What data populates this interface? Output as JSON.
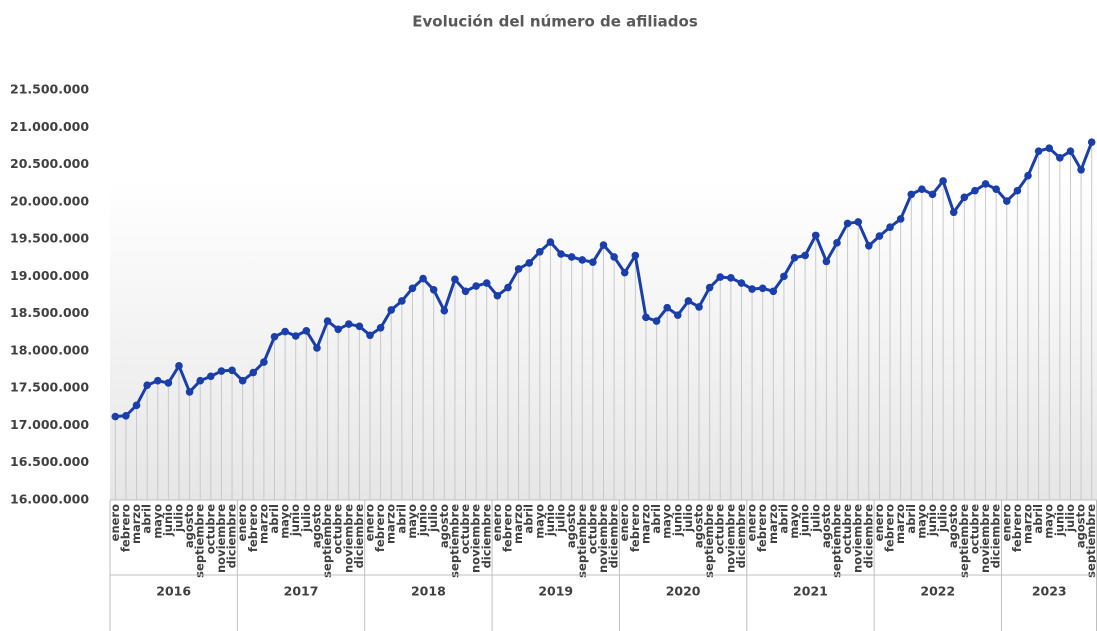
{
  "chart_data": {
    "type": "line",
    "title": "Evolución del número de afiliados",
    "color": "#1a3faa",
    "years": [
      "2016",
      "2017",
      "2018",
      "2019",
      "2020",
      "2021",
      "2022",
      "2023"
    ],
    "categories": [
      "enero",
      "febrero",
      "marzo",
      "abril",
      "mayo",
      "junio",
      "julio",
      "agosto",
      "septiembre",
      "octubre",
      "noviembre",
      "diciembre",
      "enero",
      "febrero",
      "marzo",
      "abril",
      "mayo",
      "junio",
      "julio",
      "agosto",
      "septiembre",
      "octubre",
      "noviembre",
      "diciembre",
      "enero",
      "febrero",
      "marzo",
      "abril",
      "mayo",
      "junio",
      "julio",
      "agosto",
      "septiembre",
      "octubre",
      "noviembre",
      "diciembre",
      "enero",
      "febrero",
      "marzo",
      "abril",
      "mayo",
      "junio",
      "julio",
      "agosto",
      "septiembre",
      "octubre",
      "noviembre",
      "diciembre",
      "enero",
      "febrero",
      "marzo",
      "abril",
      "mayo",
      "junio",
      "julio",
      "agosto",
      "septiembre",
      "octubre",
      "noviembre",
      "diciembre",
      "enero",
      "febrero",
      "marzo",
      "abril",
      "mayo",
      "junio",
      "julio",
      "agosto",
      "septiembre",
      "octubre",
      "noviembre",
      "diciembre",
      "enero",
      "febrero",
      "marzo",
      "abril",
      "mayo",
      "junio",
      "julio",
      "agosto",
      "septiembre",
      "octubre",
      "noviembre",
      "diciembre",
      "enero",
      "febrero",
      "marzo",
      "abril",
      "mayo",
      "junio",
      "julio",
      "agosto",
      "septiembre"
    ],
    "values": [
      17120000,
      17130000,
      17270000,
      17540000,
      17600000,
      17570000,
      17800000,
      17450000,
      17600000,
      17660000,
      17730000,
      17740000,
      17600000,
      17710000,
      17850000,
      18190000,
      18260000,
      18200000,
      18270000,
      18040000,
      18400000,
      18290000,
      18360000,
      18330000,
      18210000,
      18310000,
      18550000,
      18670000,
      18840000,
      18970000,
      18820000,
      18540000,
      18960000,
      18800000,
      18870000,
      18910000,
      18740000,
      18850000,
      19100000,
      19180000,
      19330000,
      19460000,
      19300000,
      19260000,
      19220000,
      19190000,
      19420000,
      19260000,
      19050000,
      19280000,
      18450000,
      18400000,
      18580000,
      18480000,
      18670000,
      18590000,
      18850000,
      18990000,
      18980000,
      18910000,
      18830000,
      18840000,
      18800000,
      19000000,
      19250000,
      19280000,
      19550000,
      19200000,
      19450000,
      19710000,
      19730000,
      19410000,
      19540000,
      19660000,
      19770000,
      20100000,
      20170000,
      20100000,
      20280000,
      19860000,
      20060000,
      20150000,
      20240000,
      20170000,
      20010000,
      20150000,
      20350000,
      20680000,
      20720000,
      20590000,
      20680000,
      20430000,
      20800000
    ],
    "ylim": [
      16000000,
      21500000
    ],
    "yticks": [
      {
        "value": 16000000,
        "label": "16.000.000"
      },
      {
        "value": 16500000,
        "label": "16.500.000"
      },
      {
        "value": 17000000,
        "label": "17.000.000"
      },
      {
        "value": 17500000,
        "label": "17.500.000"
      },
      {
        "value": 18000000,
        "label": "18.000.000"
      },
      {
        "value": 18500000,
        "label": "18.500.000"
      },
      {
        "value": 19000000,
        "label": "19.000.000"
      },
      {
        "value": 19500000,
        "label": "19.500.000"
      },
      {
        "value": 20000000,
        "label": "20.000.000"
      },
      {
        "value": 20500000,
        "label": "20.500.000"
      },
      {
        "value": 21000000,
        "label": "21.000.000"
      },
      {
        "value": 21500000,
        "label": "21.500.000"
      }
    ],
    "grid": false
  }
}
